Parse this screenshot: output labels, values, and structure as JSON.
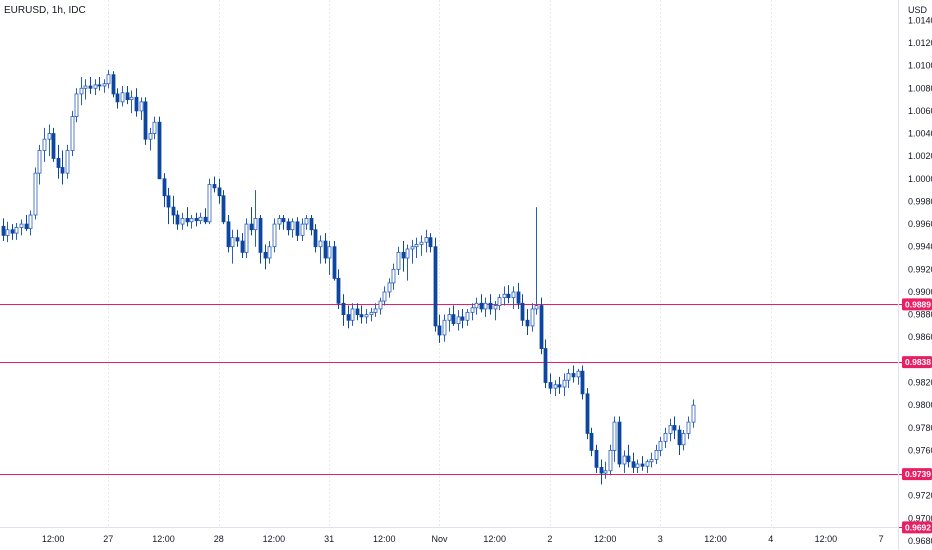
{
  "chart_data": {
    "type": "candlestick",
    "symbol": "EURUSD, 1h, IDC",
    "currency": "USD",
    "ylim": [
      0.9672,
      1.0158
    ],
    "y_ticks": [
      "1.0140",
      "1.0120",
      "1.0100",
      "1.0080",
      "1.0060",
      "1.0040",
      "1.0020",
      "1.0000",
      "0.9980",
      "0.9960",
      "0.9940",
      "0.9920",
      "0.9900",
      "0.9880",
      "0.9860",
      "0.9840",
      "0.9820",
      "0.9800",
      "0.9780",
      "0.9760",
      "0.9740",
      "0.9720",
      "0.9700",
      "0.9680"
    ],
    "x_ticks": [
      {
        "label": "12:00",
        "i": 11
      },
      {
        "label": "27",
        "i": 23
      },
      {
        "label": "12:00",
        "i": 35
      },
      {
        "label": "28",
        "i": 47
      },
      {
        "label": "12:00",
        "i": 59
      },
      {
        "label": "31",
        "i": 71
      },
      {
        "label": "12:00",
        "i": 83
      },
      {
        "label": "Nov",
        "i": 95
      },
      {
        "label": "12:00",
        "i": 107
      },
      {
        "label": "2",
        "i": 119
      },
      {
        "label": "12:00",
        "i": 131
      },
      {
        "label": "3",
        "i": 143
      },
      {
        "label": "12:00",
        "i": 155
      },
      {
        "label": "4",
        "i": 167
      },
      {
        "label": "12:00",
        "i": 179
      },
      {
        "label": "7",
        "i": 191
      }
    ],
    "vertical_grid_at": [
      23,
      47,
      71,
      95,
      119,
      143,
      167
    ],
    "horizontal_levels": [
      {
        "value": 0.9889,
        "label": "0.9889"
      },
      {
        "value": 0.9838,
        "label": "0.9838"
      },
      {
        "value": 0.9739,
        "label": "0.9739"
      },
      {
        "value": 0.9692,
        "label": "0.9692"
      }
    ],
    "colors": {
      "up": "#ffffff",
      "up_border": "#2a5fb8",
      "down": "#0d47a1",
      "level": "#e91e63",
      "grid": "#e6e9f0",
      "badge": "#e91e63"
    },
    "x_start": 0,
    "candles": [
      [
        0.9958,
        0.9965,
        0.9945,
        0.995
      ],
      [
        0.995,
        0.9962,
        0.9944,
        0.9955
      ],
      [
        0.9955,
        0.996,
        0.9946,
        0.9952
      ],
      [
        0.9952,
        0.9961,
        0.9946,
        0.9957
      ],
      [
        0.9957,
        0.9964,
        0.995,
        0.996
      ],
      [
        0.996,
        0.9968,
        0.9954,
        0.9956
      ],
      [
        0.9956,
        0.9972,
        0.995,
        0.9968
      ],
      [
        0.9968,
        1.001,
        0.9964,
        1.0005
      ],
      [
        1.0005,
        1.003,
        0.9995,
        1.0025
      ],
      [
        1.0025,
        1.0045,
        1.0015,
        1.0035
      ],
      [
        1.0035,
        1.0048,
        1.002,
        1.004
      ],
      [
        1.004,
        1.0045,
        1.0015,
        1.0018
      ],
      [
        1.0018,
        1.003,
        1.0,
        1.001
      ],
      [
        1.001,
        1.0025,
        0.9995,
        1.0005
      ],
      [
        1.0005,
        1.003,
        1.0,
        1.0025
      ],
      [
        1.0025,
        1.006,
        1.002,
        1.0055
      ],
      [
        1.0055,
        1.008,
        1.005,
        1.0075
      ],
      [
        1.0075,
        1.009,
        1.0065,
        1.008
      ],
      [
        1.008,
        1.0088,
        1.007,
        1.0082
      ],
      [
        1.0082,
        1.009,
        1.0075,
        1.008
      ],
      [
        1.008,
        1.0088,
        1.0074,
        1.0083
      ],
      [
        1.0083,
        1.009,
        1.0078,
        1.0082
      ],
      [
        1.0082,
        1.0088,
        1.0076,
        1.0084
      ],
      [
        1.0084,
        1.0096,
        1.008,
        1.0092
      ],
      [
        1.0092,
        1.0095,
        1.0072,
        1.0075
      ],
      [
        1.0075,
        1.008,
        1.0062,
        1.0068
      ],
      [
        1.0068,
        1.0082,
        1.0064,
        1.0076
      ],
      [
        1.0076,
        1.0082,
        1.0066,
        1.007
      ],
      [
        1.007,
        1.0078,
        1.0058,
        1.0072
      ],
      [
        1.0072,
        1.008,
        1.0055,
        1.006
      ],
      [
        1.006,
        1.0072,
        1.0052,
        1.0068
      ],
      [
        1.0068,
        1.0072,
        1.003,
        1.0035
      ],
      [
        1.0035,
        1.0045,
        1.0025,
        1.004
      ],
      [
        1.004,
        1.0055,
        1.0035,
        1.005
      ],
      [
        1.005,
        1.0055,
        1.0,
        1.0
      ],
      [
        1.0,
        1.0005,
        0.9975,
        0.9985
      ],
      [
        0.9985,
        0.9992,
        0.996,
        0.9975
      ],
      [
        0.9975,
        0.9985,
        0.996,
        0.9968
      ],
      [
        0.9968,
        0.9972,
        0.9955,
        0.996
      ],
      [
        0.996,
        0.997,
        0.9955,
        0.9965
      ],
      [
        0.9965,
        0.9975,
        0.9958,
        0.9962
      ],
      [
        0.9962,
        0.9968,
        0.9956,
        0.9965
      ],
      [
        0.9965,
        0.997,
        0.9958,
        0.9963
      ],
      [
        0.9963,
        0.997,
        0.996,
        0.9966
      ],
      [
        0.9966,
        0.9974,
        0.996,
        0.9962
      ],
      [
        0.9962,
        1.0,
        0.996,
        0.9995
      ],
      [
        0.9995,
        1.0002,
        0.9988,
        0.9992
      ],
      [
        0.9992,
        1.0,
        0.9978,
        0.9985
      ],
      [
        0.9985,
        0.999,
        0.996,
        0.9962
      ],
      [
        0.9962,
        0.9968,
        0.9935,
        0.994
      ],
      [
        0.994,
        0.9955,
        0.9925,
        0.9948
      ],
      [
        0.9948,
        0.9955,
        0.994,
        0.9945
      ],
      [
        0.9945,
        0.9952,
        0.993,
        0.9935
      ],
      [
        0.9935,
        0.9965,
        0.993,
        0.996
      ],
      [
        0.996,
        0.9975,
        0.995,
        0.9955
      ],
      [
        0.9955,
        0.999,
        0.994,
        0.9965
      ],
      [
        0.9965,
        0.9968,
        0.9925,
        0.9935
      ],
      [
        0.9935,
        0.9942,
        0.992,
        0.993
      ],
      [
        0.993,
        0.9945,
        0.9925,
        0.994
      ],
      [
        0.994,
        0.9965,
        0.9935,
        0.996
      ],
      [
        0.996,
        0.9968,
        0.9955,
        0.9965
      ],
      [
        0.9965,
        0.9968,
        0.9955,
        0.9962
      ],
      [
        0.9962,
        0.9965,
        0.995,
        0.9955
      ],
      [
        0.9955,
        0.9965,
        0.9948,
        0.9962
      ],
      [
        0.9962,
        0.9966,
        0.9945,
        0.995
      ],
      [
        0.995,
        0.9965,
        0.9945,
        0.996
      ],
      [
        0.996,
        0.9968,
        0.9955,
        0.9965
      ],
      [
        0.9965,
        0.9968,
        0.995,
        0.9955
      ],
      [
        0.9955,
        0.996,
        0.9935,
        0.994
      ],
      [
        0.994,
        0.995,
        0.9925,
        0.9945
      ],
      [
        0.9945,
        0.9952,
        0.9925,
        0.993
      ],
      [
        0.993,
        0.9945,
        0.9915,
        0.994
      ],
      [
        0.994,
        0.9945,
        0.991,
        0.9912
      ],
      [
        0.9912,
        0.992,
        0.9885,
        0.989
      ],
      [
        0.989,
        0.9898,
        0.987,
        0.988
      ],
      [
        0.988,
        0.9888,
        0.9868,
        0.9875
      ],
      [
        0.9875,
        0.989,
        0.987,
        0.9885
      ],
      [
        0.9885,
        0.989,
        0.9875,
        0.988
      ],
      [
        0.988,
        0.9888,
        0.9872,
        0.9878
      ],
      [
        0.9878,
        0.9885,
        0.9872,
        0.988
      ],
      [
        0.988,
        0.9886,
        0.9874,
        0.9882
      ],
      [
        0.9882,
        0.989,
        0.9878,
        0.9885
      ],
      [
        0.9885,
        0.9895,
        0.988,
        0.9892
      ],
      [
        0.9892,
        0.9905,
        0.9888,
        0.99
      ],
      [
        0.99,
        0.9912,
        0.9895,
        0.9908
      ],
      [
        0.9908,
        0.9925,
        0.9902,
        0.992
      ],
      [
        0.992,
        0.994,
        0.9915,
        0.9935
      ],
      [
        0.9935,
        0.9945,
        0.9918,
        0.993
      ],
      [
        0.993,
        0.9942,
        0.991,
        0.9938
      ],
      [
        0.9938,
        0.9946,
        0.9925,
        0.994
      ],
      [
        0.994,
        0.9948,
        0.993,
        0.9942
      ],
      [
        0.9942,
        0.995,
        0.9932,
        0.9944
      ],
      [
        0.9944,
        0.9955,
        0.9935,
        0.9948
      ],
      [
        0.9948,
        0.9952,
        0.9935,
        0.994
      ],
      [
        0.994,
        0.9948,
        0.9865,
        0.987
      ],
      [
        0.987,
        0.988,
        0.9855,
        0.9862
      ],
      [
        0.9862,
        0.988,
        0.9856,
        0.9875
      ],
      [
        0.9875,
        0.9886,
        0.9865,
        0.988
      ],
      [
        0.988,
        0.9888,
        0.987,
        0.9872
      ],
      [
        0.9872,
        0.9884,
        0.9866,
        0.9878
      ],
      [
        0.9878,
        0.9885,
        0.9868,
        0.9875
      ],
      [
        0.9875,
        0.9885,
        0.987,
        0.9882
      ],
      [
        0.9882,
        0.989,
        0.9875,
        0.9886
      ],
      [
        0.9886,
        0.9895,
        0.988,
        0.989
      ],
      [
        0.989,
        0.9898,
        0.9882,
        0.9885
      ],
      [
        0.9885,
        0.9895,
        0.9878,
        0.989
      ],
      [
        0.989,
        0.9898,
        0.988,
        0.9885
      ],
      [
        0.9885,
        0.9892,
        0.9875,
        0.9888
      ],
      [
        0.9888,
        0.9898,
        0.9884,
        0.9895
      ],
      [
        0.9895,
        0.9905,
        0.9888,
        0.9898
      ],
      [
        0.9898,
        0.9906,
        0.989,
        0.9895
      ],
      [
        0.9895,
        0.9905,
        0.9885,
        0.99
      ],
      [
        0.99,
        0.9908,
        0.9885,
        0.989
      ],
      [
        0.989,
        0.9898,
        0.987,
        0.9875
      ],
      [
        0.9875,
        0.9885,
        0.9862,
        0.987
      ],
      [
        0.987,
        0.989,
        0.9865,
        0.9885
      ],
      [
        0.9885,
        0.9975,
        0.988,
        0.9888
      ],
      [
        0.9888,
        0.9895,
        0.9845,
        0.985
      ],
      [
        0.985,
        0.9858,
        0.9815,
        0.982
      ],
      [
        0.982,
        0.9828,
        0.981,
        0.9815
      ],
      [
        0.9815,
        0.9822,
        0.9808,
        0.9818
      ],
      [
        0.9818,
        0.9825,
        0.981,
        0.9816
      ],
      [
        0.9816,
        0.9828,
        0.9808,
        0.9822
      ],
      [
        0.9822,
        0.9832,
        0.9815,
        0.9828
      ],
      [
        0.9828,
        0.9835,
        0.982,
        0.9825
      ],
      [
        0.9825,
        0.9832,
        0.9818,
        0.983
      ],
      [
        0.983,
        0.9835,
        0.9805,
        0.981
      ],
      [
        0.981,
        0.9815,
        0.977,
        0.9775
      ],
      [
        0.9775,
        0.978,
        0.9755,
        0.976
      ],
      [
        0.976,
        0.9765,
        0.974,
        0.9745
      ],
      [
        0.9745,
        0.9752,
        0.973,
        0.974
      ],
      [
        0.974,
        0.975,
        0.9735,
        0.9742
      ],
      [
        0.9742,
        0.9765,
        0.9738,
        0.976
      ],
      [
        0.976,
        0.979,
        0.975,
        0.9785
      ],
      [
        0.9785,
        0.979,
        0.9745,
        0.9748
      ],
      [
        0.9748,
        0.976,
        0.974,
        0.9755
      ],
      [
        0.9755,
        0.9765,
        0.9745,
        0.975
      ],
      [
        0.975,
        0.9758,
        0.974,
        0.9745
      ],
      [
        0.9745,
        0.9752,
        0.974,
        0.9748
      ],
      [
        0.9748,
        0.9755,
        0.9742,
        0.9746
      ],
      [
        0.9746,
        0.9752,
        0.974,
        0.975
      ],
      [
        0.975,
        0.9758,
        0.9745,
        0.9752
      ],
      [
        0.9752,
        0.9765,
        0.9748,
        0.976
      ],
      [
        0.976,
        0.9772,
        0.9755,
        0.9768
      ],
      [
        0.9768,
        0.978,
        0.9762,
        0.9775
      ],
      [
        0.9775,
        0.9788,
        0.9768,
        0.9782
      ],
      [
        0.9782,
        0.979,
        0.977,
        0.9778
      ],
      [
        0.9778,
        0.9782,
        0.9756,
        0.9765
      ],
      [
        0.9765,
        0.9778,
        0.976,
        0.9775
      ],
      [
        0.9775,
        0.979,
        0.977,
        0.9785
      ],
      [
        0.9785,
        0.9805,
        0.978,
        0.98
      ]
    ]
  }
}
